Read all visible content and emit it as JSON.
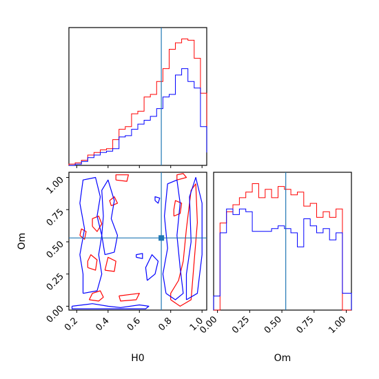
{
  "chart_data": [
    {
      "type": "histogram",
      "panel": "H0 marginal",
      "xlim": [
        0.15,
        1.03
      ],
      "truth": 0.74,
      "show_y_ticks": false,
      "x_ticks": [
        0.2,
        0.4,
        0.6,
        0.8,
        1.0
      ],
      "series": [
        {
          "color": "#ff0000",
          "bin_edges": [
            0.15,
            0.19,
            0.23,
            0.27,
            0.31,
            0.35,
            0.39,
            0.43,
            0.47,
            0.51,
            0.55,
            0.59,
            0.63,
            0.67,
            0.71,
            0.75,
            0.79,
            0.83,
            0.87,
            0.91,
            0.95,
            0.99,
            1.03
          ],
          "counts": [
            1,
            2,
            4,
            8,
            10,
            12,
            13,
            20,
            28,
            30,
            40,
            42,
            53,
            55,
            65,
            75,
            90,
            95,
            98,
            97,
            83,
            56,
            15
          ]
        },
        {
          "color": "#0000ff",
          "bin_edges": [
            0.15,
            0.19,
            0.23,
            0.27,
            0.31,
            0.35,
            0.39,
            0.43,
            0.47,
            0.51,
            0.55,
            0.59,
            0.63,
            0.67,
            0.71,
            0.75,
            0.79,
            0.83,
            0.87,
            0.91,
            0.95,
            0.99,
            1.03
          ],
          "counts": [
            0,
            1,
            3,
            6,
            8,
            10,
            11,
            13,
            22,
            23,
            28,
            32,
            35,
            38,
            44,
            53,
            55,
            70,
            75,
            65,
            60,
            30,
            10
          ]
        }
      ]
    },
    {
      "type": "contour",
      "panel": "H0 vs Om",
      "xlabel": "H0",
      "ylabel": "Om",
      "xlim": [
        0.15,
        1.03
      ],
      "ylim": [
        -0.03,
        1.04
      ],
      "x_ticks": [
        "0.2",
        "0.4",
        "0.6",
        "0.8",
        "1.0"
      ],
      "y_ticks": [
        "0.00",
        "0.25",
        "0.50",
        "0.75",
        "1.00"
      ],
      "truth": {
        "x": 0.74,
        "y": 0.53
      },
      "series": [
        {
          "color": "#ff0000",
          "contours": [
            [
              [
                0.28,
                0.05
              ],
              [
                0.34,
                0.04
              ],
              [
                0.37,
                0.07
              ],
              [
                0.35,
                0.12
              ],
              [
                0.3,
                0.1
              ],
              [
                0.28,
                0.05
              ]
            ],
            [
              [
                0.27,
                0.3
              ],
              [
                0.32,
                0.28
              ],
              [
                0.33,
                0.36
              ],
              [
                0.29,
                0.4
              ],
              [
                0.27,
                0.35
              ],
              [
                0.27,
                0.3
              ]
            ],
            [
              [
                0.3,
                0.62
              ],
              [
                0.33,
                0.58
              ],
              [
                0.36,
                0.64
              ],
              [
                0.34,
                0.7
              ],
              [
                0.3,
                0.68
              ],
              [
                0.3,
                0.62
              ]
            ],
            [
              [
                0.38,
                0.28
              ],
              [
                0.44,
                0.27
              ],
              [
                0.45,
                0.35
              ],
              [
                0.4,
                0.38
              ],
              [
                0.38,
                0.28
              ]
            ],
            [
              [
                0.42,
                0.78
              ],
              [
                0.46,
                0.8
              ],
              [
                0.44,
                0.85
              ],
              [
                0.41,
                0.82
              ],
              [
                0.42,
                0.78
              ]
            ],
            [
              [
                0.45,
                0.98
              ],
              [
                0.52,
                0.97
              ],
              [
                0.53,
                1.02
              ],
              [
                0.45,
                1.02
              ],
              [
                0.45,
                0.98
              ]
            ],
            [
              [
                0.47,
                0.08
              ],
              [
                0.6,
                0.1
              ],
              [
                0.58,
                0.05
              ],
              [
                0.48,
                0.04
              ],
              [
                0.47,
                0.08
              ]
            ],
            [
              [
                0.8,
                0.05
              ],
              [
                0.86,
                0.0
              ],
              [
                0.93,
                0.05
              ],
              [
                0.95,
                0.35
              ],
              [
                0.97,
                0.65
              ],
              [
                0.96,
                0.95
              ],
              [
                0.93,
                0.9
              ],
              [
                0.9,
                0.6
              ],
              [
                0.88,
                0.35
              ],
              [
                0.85,
                0.2
              ],
              [
                0.8,
                0.1
              ],
              [
                0.8,
                0.05
              ]
            ],
            [
              [
                0.82,
                0.7
              ],
              [
                0.86,
                0.72
              ],
              [
                0.87,
                0.8
              ],
              [
                0.83,
                0.82
              ],
              [
                0.82,
                0.75
              ],
              [
                0.82,
                0.7
              ]
            ],
            [
              [
                0.84,
                0.98
              ],
              [
                0.9,
                1.0
              ],
              [
                0.88,
                1.03
              ],
              [
                0.84,
                1.02
              ],
              [
                0.84,
                0.98
              ]
            ],
            [
              [
                0.22,
                0.55
              ],
              [
                0.25,
                0.52
              ],
              [
                0.26,
                0.58
              ],
              [
                0.23,
                0.6
              ],
              [
                0.22,
                0.55
              ]
            ]
          ]
        },
        {
          "color": "#0000ff",
          "contours": [
            [
              [
                0.17,
                0.0
              ],
              [
                0.3,
                0.02
              ],
              [
                0.4,
                0.0
              ],
              [
                0.48,
                -0.01
              ],
              [
                0.6,
                0.01
              ],
              [
                0.66,
                0.0
              ],
              [
                0.64,
                -0.02
              ],
              [
                0.4,
                -0.02
              ],
              [
                0.17,
                -0.02
              ],
              [
                0.17,
                0.0
              ]
            ],
            [
              [
                0.24,
                0.1
              ],
              [
                0.33,
                0.12
              ],
              [
                0.36,
                0.25
              ],
              [
                0.34,
                0.4
              ],
              [
                0.36,
                0.55
              ],
              [
                0.33,
                0.7
              ],
              [
                0.35,
                0.85
              ],
              [
                0.32,
                1.0
              ],
              [
                0.24,
                0.98
              ],
              [
                0.22,
                0.8
              ],
              [
                0.25,
                0.6
              ],
              [
                0.22,
                0.4
              ],
              [
                0.24,
                0.25
              ],
              [
                0.24,
                0.1
              ]
            ],
            [
              [
                0.38,
                0.4
              ],
              [
                0.44,
                0.42
              ],
              [
                0.46,
                0.55
              ],
              [
                0.42,
                0.68
              ],
              [
                0.44,
                0.82
              ],
              [
                0.4,
                0.98
              ],
              [
                0.36,
                0.9
              ],
              [
                0.37,
                0.7
              ],
              [
                0.36,
                0.55
              ],
              [
                0.38,
                0.4
              ]
            ],
            [
              [
                0.65,
                0.2
              ],
              [
                0.7,
                0.25
              ],
              [
                0.72,
                0.35
              ],
              [
                0.68,
                0.4
              ],
              [
                0.64,
                0.3
              ],
              [
                0.65,
                0.2
              ]
            ],
            [
              [
                0.77,
                0.1
              ],
              [
                0.83,
                0.05
              ],
              [
                0.88,
                0.1
              ],
              [
                0.86,
                0.3
              ],
              [
                0.84,
                0.55
              ],
              [
                0.86,
                0.8
              ],
              [
                0.84,
                0.98
              ],
              [
                0.78,
                0.95
              ],
              [
                0.76,
                0.7
              ],
              [
                0.78,
                0.45
              ],
              [
                0.75,
                0.25
              ],
              [
                0.77,
                0.1
              ]
            ],
            [
              [
                0.9,
                0.05
              ],
              [
                0.97,
                0.1
              ],
              [
                1.0,
                0.4
              ],
              [
                1.0,
                0.8
              ],
              [
                0.96,
                1.0
              ],
              [
                0.92,
                0.85
              ],
              [
                0.93,
                0.5
              ],
              [
                0.9,
                0.25
              ],
              [
                0.9,
                0.05
              ]
            ],
            [
              [
                0.58,
                0.38
              ],
              [
                0.62,
                0.37
              ],
              [
                0.62,
                0.41
              ],
              [
                0.58,
                0.4
              ],
              [
                0.58,
                0.38
              ]
            ],
            [
              [
                0.7,
                0.82
              ],
              [
                0.72,
                0.8
              ],
              [
                0.73,
                0.84
              ],
              [
                0.7,
                0.85
              ],
              [
                0.7,
                0.82
              ]
            ]
          ]
        }
      ]
    },
    {
      "type": "histogram",
      "panel": "Om marginal",
      "xlabel": "Om",
      "xlim": [
        -0.03,
        1.04
      ],
      "truth": 0.53,
      "show_y_ticks": false,
      "x_ticks": [
        "0.00",
        "0.25",
        "0.50",
        "0.75",
        "1.00"
      ],
      "series": [
        {
          "color": "#ff0000",
          "bin_edges": [
            -0.03,
            0.02,
            0.07,
            0.12,
            0.17,
            0.22,
            0.27,
            0.32,
            0.37,
            0.42,
            0.47,
            0.52,
            0.57,
            0.62,
            0.67,
            0.72,
            0.77,
            0.82,
            0.87,
            0.92,
            0.97,
            1.04
          ],
          "counts": [
            0,
            62,
            70,
            75,
            80,
            84,
            90,
            80,
            86,
            80,
            88,
            86,
            82,
            84,
            74,
            76,
            66,
            70,
            66,
            72,
            0
          ]
        },
        {
          "color": "#0000ff",
          "bin_edges": [
            -0.03,
            0.02,
            0.07,
            0.12,
            0.17,
            0.22,
            0.27,
            0.32,
            0.37,
            0.42,
            0.47,
            0.52,
            0.57,
            0.62,
            0.67,
            0.72,
            0.77,
            0.82,
            0.87,
            0.92,
            0.97,
            1.04
          ],
          "counts": [
            10,
            55,
            72,
            68,
            72,
            70,
            56,
            56,
            56,
            58,
            60,
            58,
            55,
            45,
            65,
            60,
            55,
            58,
            50,
            55,
            12
          ]
        }
      ]
    }
  ]
}
